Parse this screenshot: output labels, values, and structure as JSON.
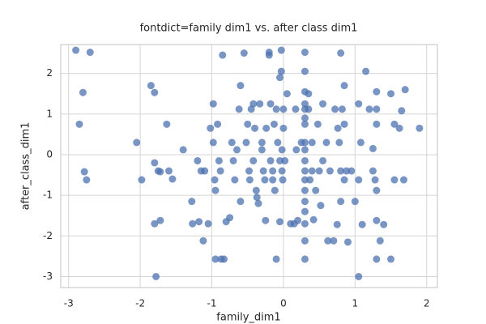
{
  "chart_data": {
    "type": "scatter",
    "title": "fontdict=family dim1 vs. after class dim1",
    "x_label": "family_dim1",
    "y_label": "after_class_dim1",
    "xlim": [
      -3.11,
      2.15
    ],
    "ylim": [
      -3.27,
      2.71
    ],
    "xticks": [
      -3,
      -2,
      -1,
      0,
      1,
      2
    ],
    "yticks": [
      -3,
      -2,
      -1,
      0,
      1,
      2
    ],
    "grid": true,
    "series": [
      {
        "color": "#4c72b0",
        "x": [
          -2.9,
          -2.7,
          -2.8,
          -2.85,
          -2.78,
          -2.75,
          -2.05,
          -1.98,
          -1.85,
          -1.8,
          -1.8,
          -1.75,
          -1.72,
          -1.6,
          -1.63,
          -1.55,
          -1.8,
          -1.72,
          -1.78,
          -1.4,
          -1.28,
          -1.27,
          -1.18,
          -1.2,
          -1.15,
          -1.12,
          -1.1,
          -1.05,
          -1.02,
          -0.98,
          -0.98,
          -0.96,
          -0.95,
          -0.95,
          -0.87,
          -0.83,
          -0.92,
          -0.9,
          -0.88,
          -0.85,
          -0.8,
          -0.75,
          -0.72,
          -0.7,
          -0.68,
          -0.65,
          -0.62,
          -0.6,
          -0.6,
          -0.55,
          -0.52,
          -0.5,
          -0.48,
          -0.47,
          -0.45,
          -0.42,
          -0.42,
          -0.4,
          -0.38,
          -0.37,
          -0.35,
          -0.33,
          -0.3,
          -0.3,
          -0.28,
          -0.26,
          -0.25,
          -0.24,
          -0.2,
          -0.2,
          -0.18,
          -0.18,
          -0.15,
          -0.15,
          -0.13,
          -0.12,
          -0.1,
          -0.1,
          -0.08,
          -0.05,
          -0.05,
          -0.05,
          -0.03,
          -0.03,
          -0.02,
          -0.02,
          -0.01,
          0,
          0,
          0.02,
          0.05,
          0.1,
          0.15,
          0.17,
          0.18,
          0.2,
          0.25,
          0.3,
          0.3,
          0.3,
          0.3,
          0.3,
          0.3,
          0.3,
          0.3,
          0.3,
          0.3,
          0.3,
          0.3,
          0.3,
          0.3,
          0.3,
          0.3,
          0.3,
          0.3,
          0.35,
          0.35,
          0.37,
          0.4,
          0.4,
          0.42,
          0.45,
          0.48,
          0.5,
          0.52,
          0.55,
          0.55,
          0.6,
          0.62,
          0.65,
          0.7,
          0.72,
          0.75,
          0.76,
          0.78,
          0.8,
          0.8,
          0.8,
          0.82,
          0.85,
          0.85,
          0.85,
          0.88,
          0.9,
          0.95,
          1.0,
          1.05,
          1.05,
          1.05,
          1.08,
          1.1,
          1.15,
          1.2,
          1.25,
          1.25,
          1.28,
          1.3,
          1.3,
          1.3,
          1.3,
          1.3,
          1.3,
          1.35,
          1.4,
          1.5,
          1.5,
          1.55,
          1.55,
          1.62,
          1.65,
          1.7,
          1.68,
          1.9
        ],
        "y": [
          2.57,
          2.52,
          1.53,
          0.75,
          -0.42,
          -0.62,
          0.3,
          -0.62,
          1.7,
          1.53,
          -0.2,
          -0.4,
          -0.42,
          -0.4,
          0.75,
          -0.6,
          -1.7,
          -1.62,
          -3.0,
          0.12,
          -1.15,
          -1.7,
          -1.65,
          -0.15,
          -0.4,
          -2.12,
          -0.4,
          -1.7,
          0.65,
          1.25,
          0.3,
          -0.62,
          -0.88,
          -2.57,
          -2.57,
          -2.57,
          0.75,
          -0.15,
          -0.4,
          2.45,
          -1.65,
          -1.55,
          0.3,
          -0.15,
          -0.62,
          0.12,
          1.12,
          1.7,
          -1.15,
          2.5,
          0.3,
          0.75,
          -0.4,
          -0.62,
          1.12,
          1.25,
          -0.15,
          0.65,
          -0.88,
          -1.05,
          -1.2,
          1.25,
          0.3,
          0.12,
          -0.4,
          -0.62,
          -1.62,
          0.65,
          2.45,
          2.52,
          1.25,
          -0.15,
          -0.4,
          -0.62,
          0.75,
          -0.88,
          1.12,
          -2.57,
          0.3,
          -0.15,
          1.9,
          -1.65,
          2.05,
          2.57,
          0.12,
          -0.4,
          -0.62,
          0.65,
          1.12,
          -0.15,
          1.5,
          -1.7,
          -1.7,
          1.12,
          0.12,
          -1.62,
          0.3,
          2.52,
          2.05,
          1.55,
          1.25,
          1.12,
          0.9,
          0.75,
          0.3,
          0.12,
          -0.15,
          -0.4,
          -0.62,
          -0.88,
          -1.15,
          -1.4,
          -1.7,
          -2.12,
          -2.57,
          1.12,
          1.5,
          -0.62,
          0.3,
          -0.4,
          -1.6,
          -0.88,
          0.75,
          -0.4,
          -1.25,
          1.25,
          -0.15,
          0.3,
          -2.12,
          -0.4,
          -2.12,
          1.12,
          -1.72,
          0.65,
          0.3,
          -0.4,
          -1.15,
          2.5,
          1.12,
          1.7,
          0.75,
          -0.62,
          -0.4,
          -2.15,
          -0.4,
          -1.15,
          1.25,
          -0.62,
          -3.0,
          0.3,
          -1.72,
          2.05,
          1.12,
          0.15,
          -0.4,
          -0.62,
          1.55,
          1.12,
          0.75,
          -0.88,
          -1.62,
          -2.57,
          -2.12,
          -1.72,
          1.5,
          -2.57,
          0.75,
          -0.62,
          0.65,
          1.08,
          1.6,
          -0.62,
          0.65
        ]
      }
    ]
  }
}
